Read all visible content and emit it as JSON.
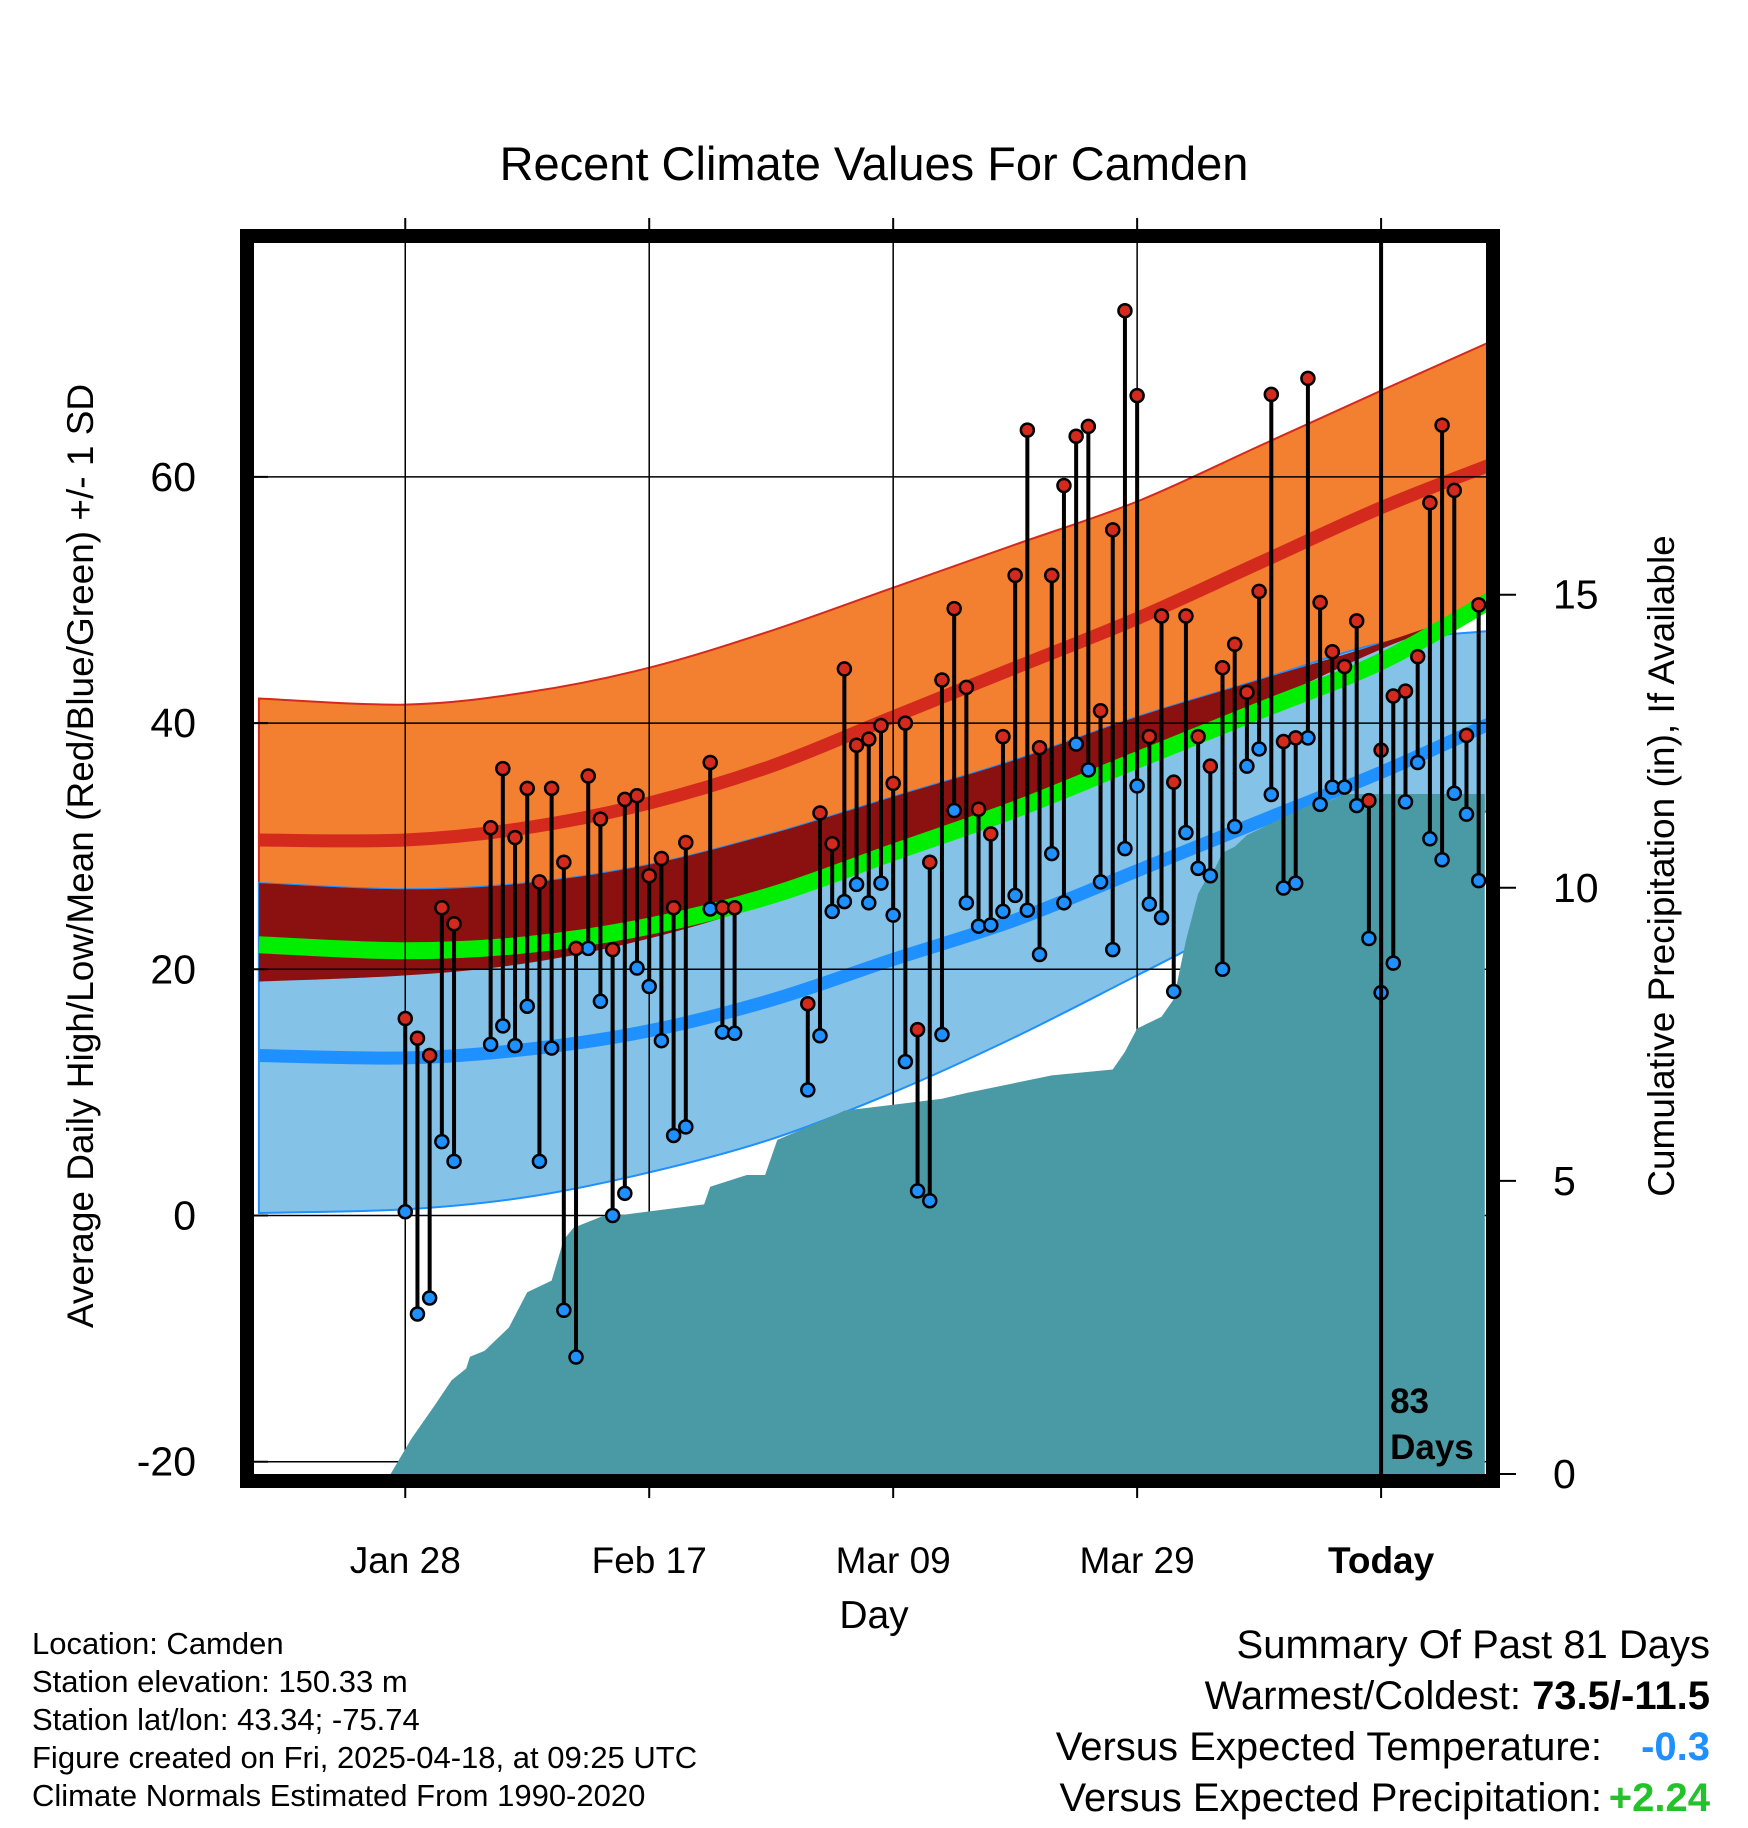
{
  "chart_data": {
    "type": "line",
    "title": "Recent Climate Values For Camden",
    "xlabel": "Day",
    "ylabel": "Average Daily High/Low/Mean (Red/Blue/Green) +/- 1 SD",
    "y2label": "Cumulative Precipitation (in), If Available",
    "ylim": [
      -21,
      79
    ],
    "y2lim": [
      0,
      21
    ],
    "xlim": [
      -12.4,
      88.6
    ],
    "yticks": [
      -20,
      0,
      20,
      40,
      60
    ],
    "ytick_labels": [
      "-20",
      "0",
      "20",
      "40",
      "60"
    ],
    "y2ticks": [
      0,
      5,
      10,
      15
    ],
    "y2tick_labels": [
      "0",
      "5",
      "10",
      "15"
    ],
    "xticks": [
      0,
      20,
      40,
      60,
      80
    ],
    "xtick_labels": [
      "Jan 28",
      "Feb 17",
      "Mar 09",
      "Mar 29",
      "Today"
    ],
    "today_index": 80,
    "today_annotation": [
      "83",
      "Days"
    ],
    "normals": {
      "x": [
        -12,
        0,
        10,
        20,
        30,
        40,
        50,
        60,
        70,
        80,
        89
      ],
      "high_mean": [
        30.5,
        30.5,
        31.5,
        33.5,
        36.5,
        40.5,
        44.5,
        48.5,
        53,
        57.5,
        61
      ],
      "high_upper": [
        42,
        41.5,
        42.5,
        44.5,
        47.5,
        51,
        54.5,
        58,
        62.5,
        67,
        71
      ],
      "high_lower": [
        19,
        19.5,
        20.5,
        22.5,
        25.5,
        29.5,
        33.5,
        37.5,
        41.5,
        46,
        49.5
      ],
      "low_mean": [
        13,
        12.8,
        13.5,
        15,
        17.5,
        20.8,
        24,
        28,
        32,
        36,
        40
      ],
      "low_upper": [
        27,
        26.5,
        27,
        28.5,
        31,
        34,
        37,
        40.5,
        43.5,
        46.5,
        47.5
      ],
      "low_lower": [
        0.2,
        0.5,
        1.5,
        3.5,
        6.2,
        10,
        14.5,
        19.5,
        24.5,
        29,
        33
      ],
      "avg_mean": [
        22,
        21.5,
        22,
        23.5,
        26,
        29.5,
        33,
        37,
        41,
        45,
        50
      ]
    },
    "series": [
      {
        "name": "High",
        "color": "#d42a1e",
        "values": [
          16,
          14.4,
          13,
          25,
          23.7,
          null,
          null,
          31.5,
          36.3,
          30.7,
          34.7,
          27.1,
          34.7,
          28.7,
          21.7,
          35.7,
          32.2,
          21.6,
          33.8,
          34.1,
          27.6,
          29,
          25,
          30.3,
          null,
          36.8,
          25,
          25,
          null,
          null,
          null,
          null,
          null,
          17.2,
          32.7,
          30.2,
          44.4,
          38.2,
          38.7,
          39.8,
          35.1,
          40,
          15.1,
          28.7,
          43.5,
          49.3,
          42.9,
          33,
          31,
          38.9,
          52,
          63.8,
          38,
          52,
          59.3,
          63.3,
          64.1,
          41,
          55.7,
          73.5,
          66.6,
          38.9,
          48.7,
          35.2,
          48.7,
          38.9,
          36.5,
          44.5,
          46.4,
          42.5,
          50.7,
          66.7,
          38.5,
          38.8,
          68,
          49.8,
          45.8,
          44.6,
          48.3,
          33.7,
          37.8,
          42.2,
          42.6,
          45.4,
          57.9,
          64.2,
          58.9,
          39,
          49.6
        ]
      },
      {
        "name": "Low",
        "color": "#1e90ff",
        "values": [
          0.3,
          -8,
          -6.7,
          6,
          4.4,
          null,
          null,
          13.9,
          15.4,
          13.8,
          17,
          4.4,
          13.6,
          -7.7,
          -11.5,
          21.7,
          17.4,
          0,
          1.8,
          20.1,
          18.6,
          14.2,
          6.5,
          7.2,
          null,
          24.9,
          14.9,
          14.8,
          null,
          null,
          null,
          null,
          null,
          10.2,
          14.6,
          24.7,
          25.5,
          26.9,
          25.4,
          27,
          24.4,
          12.5,
          2,
          1.2,
          14.7,
          32.9,
          25.4,
          23.5,
          23.6,
          24.7,
          26,
          24.8,
          21.2,
          29.4,
          25.4,
          38.3,
          36.2,
          27.1,
          21.6,
          29.8,
          34.9,
          25.3,
          24.2,
          18.2,
          31.1,
          28.2,
          27.6,
          20,
          31.6,
          36.5,
          37.9,
          34.2,
          26.6,
          27,
          38.8,
          33.4,
          34.8,
          34.8,
          33.3,
          22.5,
          18.1,
          20.5,
          33.6,
          36.8,
          30.6,
          28.9,
          34.3,
          32.6,
          27.2
        ]
      },
      {
        "name": "Cumulative Precipitation",
        "color": "#4a9aa5",
        "unit": "in",
        "x": [
          -1.2,
          0.5,
          2.5,
          3.8,
          5,
          5.3,
          6.5,
          8.5,
          10,
          12,
          13,
          13.8,
          15,
          16.2,
          17,
          24.5,
          25,
          28,
          29.5,
          30.5,
          35,
          36,
          40,
          44,
          46,
          53,
          58,
          59,
          60,
          62,
          63,
          64,
          65,
          65.8,
          66.3,
          67,
          68,
          69,
          70,
          71,
          72,
          73,
          74,
          76,
          77,
          79,
          80,
          88.5
        ],
        "values": [
          0,
          0.6,
          1.2,
          1.6,
          1.8,
          2,
          2.1,
          2.5,
          3.1,
          3.3,
          4,
          4.2,
          4.3,
          4.4,
          4.4,
          4.6,
          4.9,
          5.1,
          5.1,
          5.7,
          6.1,
          6.2,
          6.3,
          6.4,
          6.5,
          6.8,
          6.9,
          7.2,
          7.6,
          7.8,
          8.1,
          9.1,
          9.9,
          10.2,
          10.3,
          10.6,
          10.7,
          10.9,
          11,
          11.1,
          11.2,
          11.3,
          11.4,
          11.5,
          11.6,
          11.6,
          11.6,
          11.6
        ]
      }
    ]
  },
  "info": {
    "location": "Location: Camden",
    "elevation": "Station elevation: 150.33 m",
    "latlon": "Station lat/lon: 43.34; -75.74",
    "created": "Figure created on Fri, 2025-04-18, at 09:25 UTC",
    "normals": "Climate Normals Estimated From 1990-2020"
  },
  "summary": {
    "title": "Summary Of Past 81 Days",
    "warm_label": "Warmest/Coldest: ",
    "warm_value": "73.5/-11.5",
    "temp_label": "Versus Expected Temperature:",
    "temp_value": "-0.3",
    "temp_color": "#1e90ff",
    "precip_label": "Versus Expected Precipitation:",
    "precip_value": "+2.24",
    "precip_color": "#22c22a"
  },
  "colors": {
    "high_band": "#f28030",
    "high_line": "#d42a1e",
    "overlap_band": "#8b1010",
    "low_band": "#85c2e8",
    "low_line": "#1e90ff",
    "avg_line": "#00ee00",
    "precip_fill": "#4a9aa5",
    "frame": "#000000"
  }
}
